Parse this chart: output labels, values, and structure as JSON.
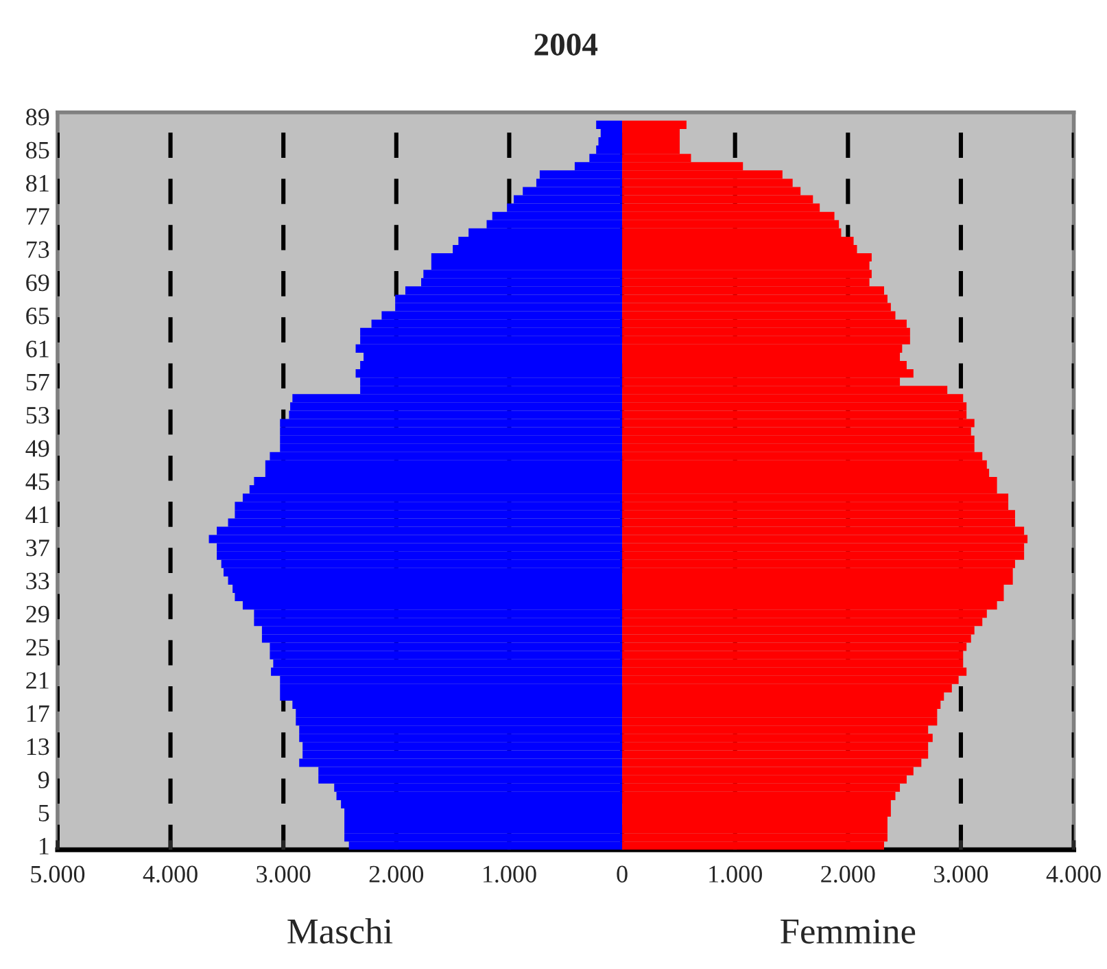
{
  "chart_data": {
    "type": "bar",
    "orientation": "horizontal",
    "title": "2004",
    "categories": [
      "89",
      null,
      null,
      null,
      "85",
      null,
      null,
      null,
      "81",
      null,
      null,
      null,
      "77",
      null,
      null,
      null,
      "73",
      null,
      null,
      null,
      "69",
      null,
      null,
      null,
      "65",
      null,
      null,
      null,
      "61",
      null,
      null,
      null,
      "57",
      null,
      null,
      null,
      "53",
      null,
      null,
      null,
      "49",
      null,
      null,
      null,
      "45",
      null,
      null,
      null,
      "41",
      null,
      null,
      null,
      "37",
      null,
      null,
      null,
      "33",
      null,
      null,
      null,
      "29",
      null,
      null,
      null,
      "25",
      null,
      null,
      null,
      "21",
      null,
      null,
      null,
      "17",
      null,
      null,
      null,
      "13",
      null,
      null,
      null,
      "9",
      null,
      null,
      null,
      "5",
      null,
      null,
      null,
      "1"
    ],
    "series": [
      {
        "name": "Maschi",
        "color": "#0000ff",
        "values": [
          null,
          -230,
          -190,
          -210,
          -230,
          -290,
          -420,
          -730,
          -760,
          -880,
          -960,
          -1020,
          -1150,
          -1200,
          -1360,
          -1450,
          -1500,
          -1690,
          -1690,
          -1760,
          -1780,
          -1920,
          -2010,
          -2010,
          -2130,
          -2220,
          -2320,
          -2320,
          -2360,
          -2290,
          -2320,
          -2360,
          -2320,
          -2320,
          -2920,
          -2940,
          -2950,
          -3030,
          -3030,
          -3030,
          -3030,
          -3120,
          -3160,
          -3160,
          -3260,
          -3300,
          -3360,
          -3430,
          -3430,
          -3490,
          -3590,
          -3660,
          -3590,
          -3590,
          -3550,
          -3530,
          -3490,
          -3450,
          -3430,
          -3360,
          -3260,
          -3260,
          -3190,
          -3190,
          -3120,
          -3120,
          -3090,
          -3110,
          -3030,
          -3030,
          -3030,
          -2920,
          -2890,
          -2890,
          -2860,
          -2860,
          -2830,
          -2830,
          -2860,
          -2690,
          -2690,
          -2550,
          -2530,
          -2490,
          -2460,
          -2460,
          -2460,
          -2460,
          -2420
        ]
      },
      {
        "name": "Femmine",
        "color": "#ff0000",
        "values": [
          null,
          570,
          510,
          510,
          510,
          610,
          1070,
          1420,
          1510,
          1580,
          1690,
          1750,
          1880,
          1920,
          1940,
          2050,
          2080,
          2210,
          2190,
          2210,
          2190,
          2320,
          2350,
          2380,
          2420,
          2520,
          2550,
          2550,
          2480,
          2460,
          2520,
          2580,
          2460,
          2880,
          3020,
          3050,
          3050,
          3120,
          3090,
          3120,
          3120,
          3190,
          3230,
          3250,
          3320,
          3320,
          3420,
          3420,
          3480,
          3480,
          3560,
          3590,
          3560,
          3560,
          3480,
          3460,
          3460,
          3380,
          3380,
          3320,
          3230,
          3190,
          3120,
          3090,
          3050,
          3020,
          3020,
          3050,
          2980,
          2920,
          2850,
          2820,
          2790,
          2790,
          2710,
          2750,
          2710,
          2710,
          2650,
          2580,
          2520,
          2460,
          2420,
          2380,
          2380,
          2350,
          2350,
          2350,
          2320
        ]
      }
    ],
    "stacked": true,
    "xlim": [
      -5000,
      4000
    ],
    "xticks": [
      {
        "value": -5000,
        "label": "5.000"
      },
      {
        "value": -4000,
        "label": "4.000"
      },
      {
        "value": -3000,
        "label": "3.000"
      },
      {
        "value": -2000,
        "label": "2.000"
      },
      {
        "value": -1000,
        "label": "1.000"
      },
      0,
      {
        "value": 1000,
        "label": "1.000"
      },
      {
        "value": 2000,
        "label": "2.000"
      },
      {
        "value": 3000,
        "label": "3.000"
      },
      {
        "value": 4000,
        "label": "4.000"
      }
    ],
    "grid": "x"
  }
}
